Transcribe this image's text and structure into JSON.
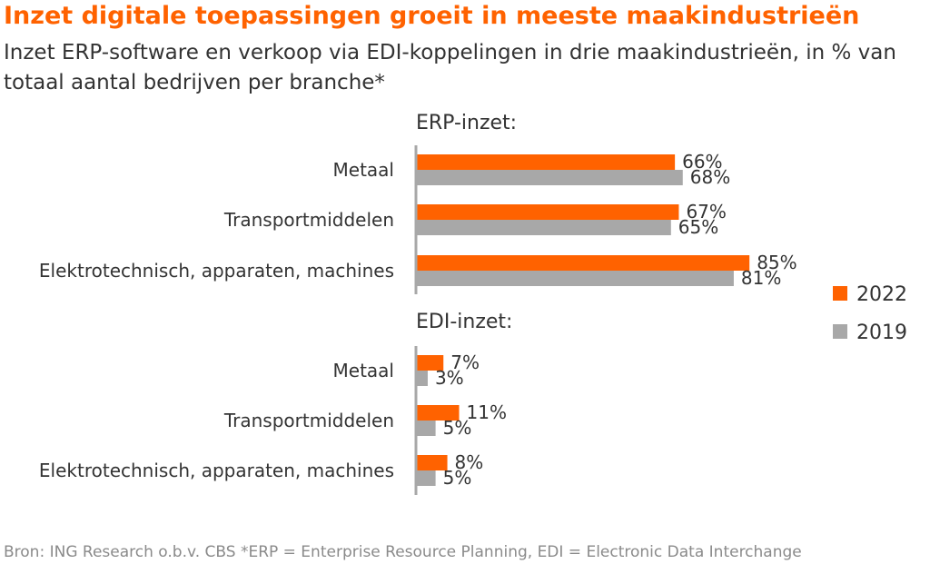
{
  "title": "Inzet digitale toepassingen groeit in meeste maakindustrieën",
  "subtitle": "Inzet ERP-software en verkoop via EDI-koppelingen in drie maakindustrieën, in % van totaal aantal bedrijven per branche*",
  "footer": "Bron: ING Research o.b.v. CBS   *ERP = Enterprise Resource Planning, EDI = Electronic Data Interchange",
  "colors": {
    "series_2022": "#ff6200",
    "series_2019": "#a8a8a8",
    "title": "#ff6200",
    "axis": "#a8a8a8"
  },
  "chart_data": [
    {
      "type": "bar",
      "orientation": "horizontal",
      "title": "ERP-inzet:",
      "categories": [
        "Metaal",
        "Transportmiddelen",
        "Elektrotechnisch, apparaten, machines"
      ],
      "series": [
        {
          "name": "2022",
          "values": [
            66,
            67,
            85
          ]
        },
        {
          "name": "2019",
          "values": [
            68,
            65,
            81
          ]
        }
      ],
      "value_suffix": "%",
      "xlim": [
        0,
        100
      ],
      "grid": false,
      "legend": "right"
    },
    {
      "type": "bar",
      "orientation": "horizontal",
      "title": "EDI-inzet:",
      "categories": [
        "Metaal",
        "Transportmiddelen",
        "Elektrotechnisch, apparaten, machines"
      ],
      "series": [
        {
          "name": "2022",
          "values": [
            7,
            11,
            8
          ]
        },
        {
          "name": "2019",
          "values": [
            3,
            5,
            5
          ]
        }
      ],
      "value_suffix": "%",
      "xlim": [
        0,
        100
      ],
      "grid": false,
      "legend": "right"
    }
  ]
}
